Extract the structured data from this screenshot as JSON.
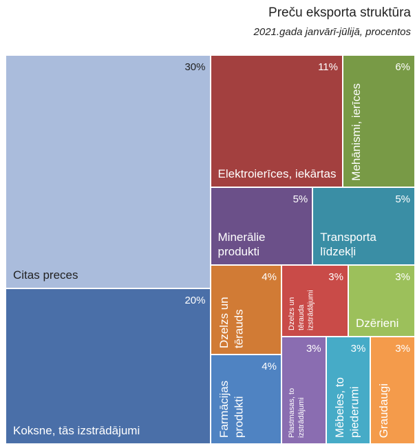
{
  "chart_data": {
    "type": "treemap",
    "title": "Preču eksporta struktūra",
    "subtitle": "2021.gada janvārī-jūlijā, procentos",
    "categories": [
      "Citas preces",
      "Koksne, tās izstrādājumi",
      "Elektroierīces, iekārtas",
      "Mehānismi, ierīces",
      "Minerālie produkti",
      "Transporta līdzekļi",
      "Dzelzs un tērauds",
      "Dzelzs un tērauda izstrādājumi",
      "Dzērieni",
      "Farmācijas produkti",
      "Plastmasas, to izstrādājumi",
      "Mēbeles, to piederumi",
      "Graudaugi"
    ],
    "values": [
      30,
      20,
      11,
      6,
      5,
      5,
      4,
      3,
      3,
      4,
      3,
      3,
      3
    ],
    "value_labels": [
      "30%",
      "20%",
      "11%",
      "6%",
      "5%",
      "5%",
      "4%",
      "3%",
      "3%",
      "4%",
      "3%",
      "3%",
      "3%"
    ],
    "colors": [
      "#aabcdc",
      "#4a6fa8",
      "#a3403f",
      "#789a46",
      "#6b5089",
      "#3a8ea5",
      "#d17b35",
      "#c94b48",
      "#9cc05b",
      "#4f83c2",
      "#8a6db1",
      "#46abc7",
      "#f49b4b"
    ]
  }
}
